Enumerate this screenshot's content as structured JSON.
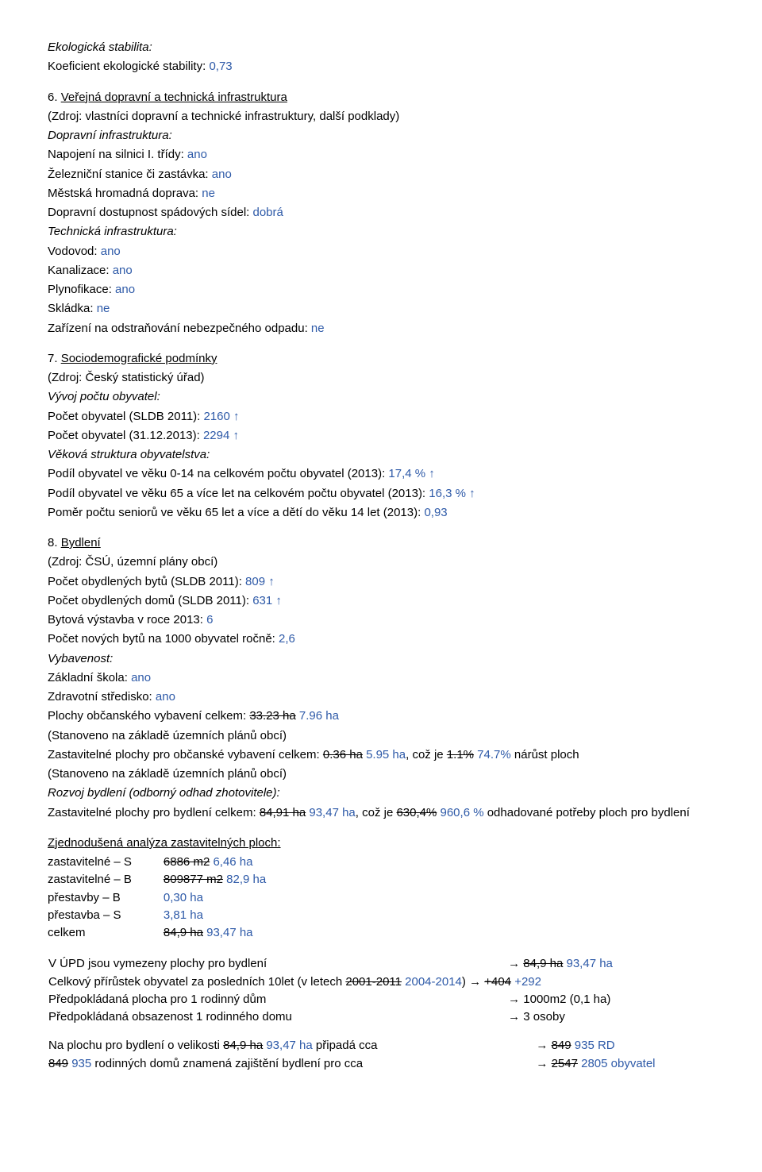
{
  "eco": {
    "title": "Ekologická stabilita:",
    "coef_label": "Koeficient ekologické stability: ",
    "coef_val": "0,73"
  },
  "s6": {
    "heading_num": "6. ",
    "heading": "Veřejná dopravní a technická infrastruktura",
    "source": "(Zdroj: vlastníci dopravní a technické infrastruktury, další podklady)",
    "di_title": "Dopravní infrastruktura:",
    "silnice_label": "Napojení na silnici I. třídy: ",
    "silnice_val": "ano",
    "zeleznice_label": "Železniční stanice či zastávka: ",
    "zeleznice_val": "ano",
    "mhd_label": "Městská hromadná doprava: ",
    "mhd_val": "ne",
    "spad_label": "Dopravní dostupnost spádových sídel: ",
    "spad_val": "dobrá",
    "ti_title": "Technická infrastruktura:",
    "vodovod_label": "Vodovod: ",
    "vodovod_val": "ano",
    "kanal_label": "Kanalizace: ",
    "kanal_val": "ano",
    "plyn_label": "Plynofikace: ",
    "plyn_val": "ano",
    "skladka_label": "Skládka: ",
    "skladka_val": "ne",
    "odpad_label": "Zařízení na odstraňování nebezpečného odpadu: ",
    "odpad_val": "ne"
  },
  "s7": {
    "heading_num": "7. ",
    "heading": "Sociodemografické podmínky",
    "source": "(Zdroj: Český statistický úřad)",
    "voo": "Vývoj počtu obyvatel:",
    "sldb_label": "Počet obyvatel (SLDB 2011): ",
    "sldb_val": "2160",
    "k2013_label": "Počet obyvatel (31.12.2013): ",
    "k2013_val": "2294",
    "vso": "Věková struktura obyvatelstva:",
    "p014_label": "Podíl obyvatel ve věku 0-14 na celkovém počtu obyvatel (2013): ",
    "p014_val": "17,4 %",
    "p65_label": "Podíl obyvatel ve věku 65 a více let na celkovém počtu obyvatel (2013): ",
    "p65_val": "16,3 %",
    "pomer_label": "Poměr počtu seniorů ve věku 65 let a více a dětí do věku 14 let (2013): ",
    "pomer_val": "0,93"
  },
  "s8": {
    "heading_num": "8. ",
    "heading": "Bydlení",
    "source": "(Zdroj: ČSÚ, územní plány obcí)",
    "byty_label": "Počet obydlených bytů (SLDB 2011): ",
    "byty_val": "809",
    "domy_label": "Počet obydlených domů (SLDB 2011): ",
    "domy_val": "631",
    "byt2013_label": "Bytová výstavba v roce 2013: ",
    "byt2013_val": "6",
    "nove_label": "Počet nových bytů na 1000 obyvatel ročně: ",
    "nove_val": "2,6",
    "vyb": "Vybavenost:",
    "zs_label": "Základní škola: ",
    "zs_val": "ano",
    "zdrav_label": "Zdravotní středisko: ",
    "zdrav_val": "ano",
    "obvyb_label": "Plochy občanského vybavení celkem: ",
    "obvyb_old": "33.23 ha",
    "obvyb_new": " 7.96 ha",
    "note_plan": "(Stanoveno na základě územních plánů obcí)",
    "zastov_label": "Zastavitelné plochy pro občanské vybavení celkem: ",
    "zastov_old": "0.36 ha",
    "zastov_new": " 5.95 ha",
    "zastov_mid": ", což je ",
    "zastov_pct_old": "1.1%",
    "zastov_pct_new": " 74.7%",
    "zastov_tail": " nárůst ploch",
    "rozvoj": "Rozvoj bydlení (odborný odhad zhotovitele):",
    "zastbyd_label": "Zastavitelné plochy pro bydlení celkem: ",
    "zastbyd_old": "84,91 ha",
    "zastbyd_new": " 93,47 ha",
    "zastbyd_mid": ", což je ",
    "zastbyd_pct_old": "630,4%",
    "zastbyd_pct_new": " 960,6 %",
    "zastbyd_tail": " odhadované potřeby ploch pro bydlení"
  },
  "analysis": {
    "heading": "Zjednodušená analýza zastavitelných ploch:",
    "r1_l": "zastavitelné – S",
    "r1_old": "6886 m2",
    "r1_new": " 6,46 ha",
    "r2_l": "zastavitelné – B",
    "r2_old": "809877 m2",
    "r2_new": " 82,9 ha",
    "r3_l": "přestavby – B",
    "r3_v": "0,30 ha",
    "r4_l": "přestavba – S",
    "r4_v": "3,81 ha",
    "r5_l": "celkem",
    "r5_old": "84,9 ha",
    "r5_new": " 93,47 ha"
  },
  "arrows": {
    "r1_l": "V ÚPD jsou vymezeny plochy pro bydlení",
    "r1_r_arrow": "→ ",
    "r1_r_old": "84,9 ha",
    "r1_r_new": " 93,47 ha",
    "r2_l_a": "Celkový přírůstek obyvatel za posledních 10let (v letech ",
    "r2_l_old": "2001-2011",
    "r2_l_new": " 2004-2014",
    "r2_l_b": ") ",
    "r2_r_arrow": "→ ",
    "r2_r_old": "+404",
    "r2_r_new": " +292",
    "r3_l": "Předpokládaná plocha pro 1 rodinný dům",
    "r3_r": "→ 1000m2 (0,1 ha)",
    "r4_l": "Předpokládaná obsazenost 1 rodinného domu",
    "r4_r": "→ 3 osoby"
  },
  "foot": {
    "l1_a": "Na plochu pro bydlení o velikosti ",
    "l1_old": "84,9 ha",
    "l1_new": " 93,47 ha",
    "l1_b": " připadá cca",
    "l1_r_arrow": "→ ",
    "l1_r_old": "849",
    "l1_r_new": " 935 RD",
    "l2_old": "849",
    "l2_new": " 935",
    "l2_mid": " rodinných domů znamená zajištění bydlení pro cca",
    "l2_r_arrow": "→ ",
    "l2_r_old": "2547",
    "l2_r_new": " 2805 obyvatel"
  }
}
